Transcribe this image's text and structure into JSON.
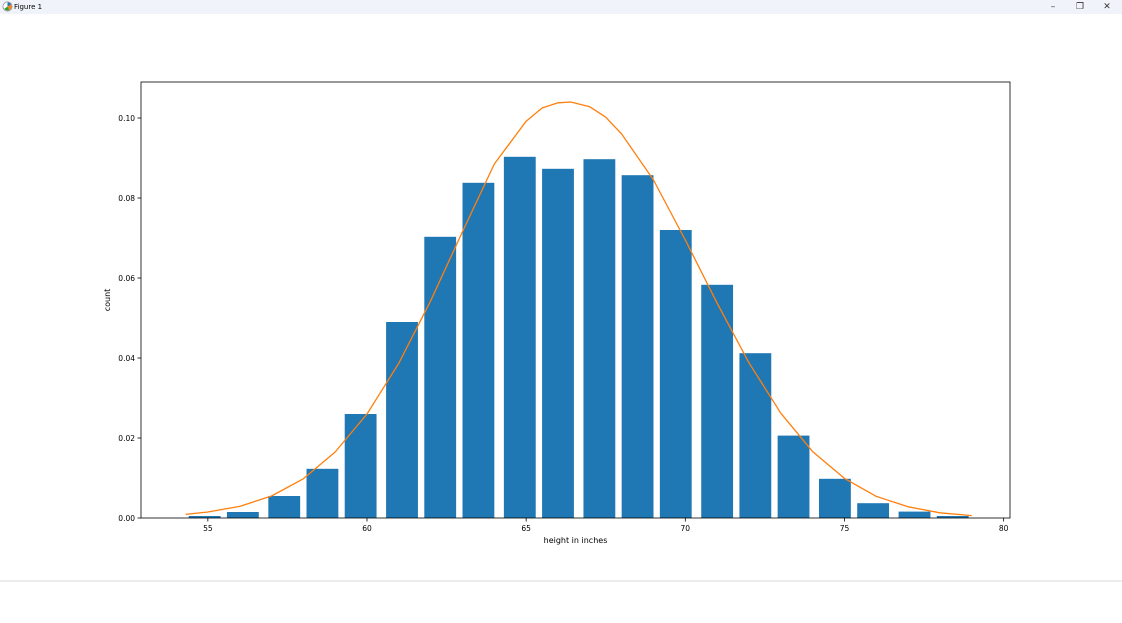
{
  "window": {
    "title": "Figure 1",
    "icons": {
      "app": "matplotlib-icon",
      "minimize": "minimize-icon",
      "maximize": "restore-icon",
      "close": "close-icon"
    },
    "minimize_label": "–",
    "maximize_label": "❐",
    "close_label": "✕"
  },
  "colors": {
    "bars": "#1f77b4",
    "curve": "#ff7f0e",
    "axes": "#000000",
    "titlebar": "#f0f3f9"
  },
  "chart_data": {
    "type": "bar",
    "title": "",
    "xlabel": "height in inches",
    "ylabel": "count",
    "xlim": [
      52.9,
      80.2
    ],
    "ylim": [
      0,
      0.109
    ],
    "xticks": [
      55,
      60,
      65,
      70,
      75,
      80
    ],
    "yticks": [
      0.0,
      0.02,
      0.04,
      0.06,
      0.08,
      0.1
    ],
    "ytick_labels": [
      "0.00",
      "0.02",
      "0.04",
      "0.06",
      "0.08",
      "0.10"
    ],
    "grid": false,
    "bar_width": 1.0,
    "bars": {
      "x": [
        54.9,
        56.1,
        57.4,
        58.6,
        59.8,
        61.1,
        62.3,
        63.5,
        64.8,
        66.0,
        67.3,
        68.5,
        69.7,
        71.0,
        72.2,
        73.4,
        74.7,
        75.9,
        77.2,
        78.4
      ],
      "values": [
        0.0005,
        0.0015,
        0.0055,
        0.0123,
        0.026,
        0.049,
        0.0703,
        0.0838,
        0.0903,
        0.0873,
        0.0897,
        0.0857,
        0.072,
        0.0583,
        0.0412,
        0.0206,
        0.0098,
        0.0037,
        0.0016,
        0.0005
      ]
    },
    "curve": {
      "type": "line",
      "x": [
        54.3,
        55.0,
        56.0,
        57.0,
        58.0,
        59.0,
        60.0,
        61.0,
        62.0,
        63.0,
        64.0,
        65.0,
        65.5,
        66.0,
        66.4,
        67.0,
        67.5,
        68.0,
        69.0,
        70.0,
        71.0,
        72.0,
        73.0,
        74.0,
        75.0,
        76.0,
        77.0,
        78.0,
        79.0
      ],
      "y": [
        0.0009,
        0.0015,
        0.0029,
        0.0055,
        0.0098,
        0.0165,
        0.026,
        0.0387,
        0.0543,
        0.0716,
        0.0885,
        0.0992,
        0.1025,
        0.1038,
        0.104,
        0.1028,
        0.1002,
        0.096,
        0.0845,
        0.0695,
        0.0537,
        0.0388,
        0.0262,
        0.0166,
        0.0099,
        0.0054,
        0.0028,
        0.0013,
        0.0006
      ]
    }
  }
}
